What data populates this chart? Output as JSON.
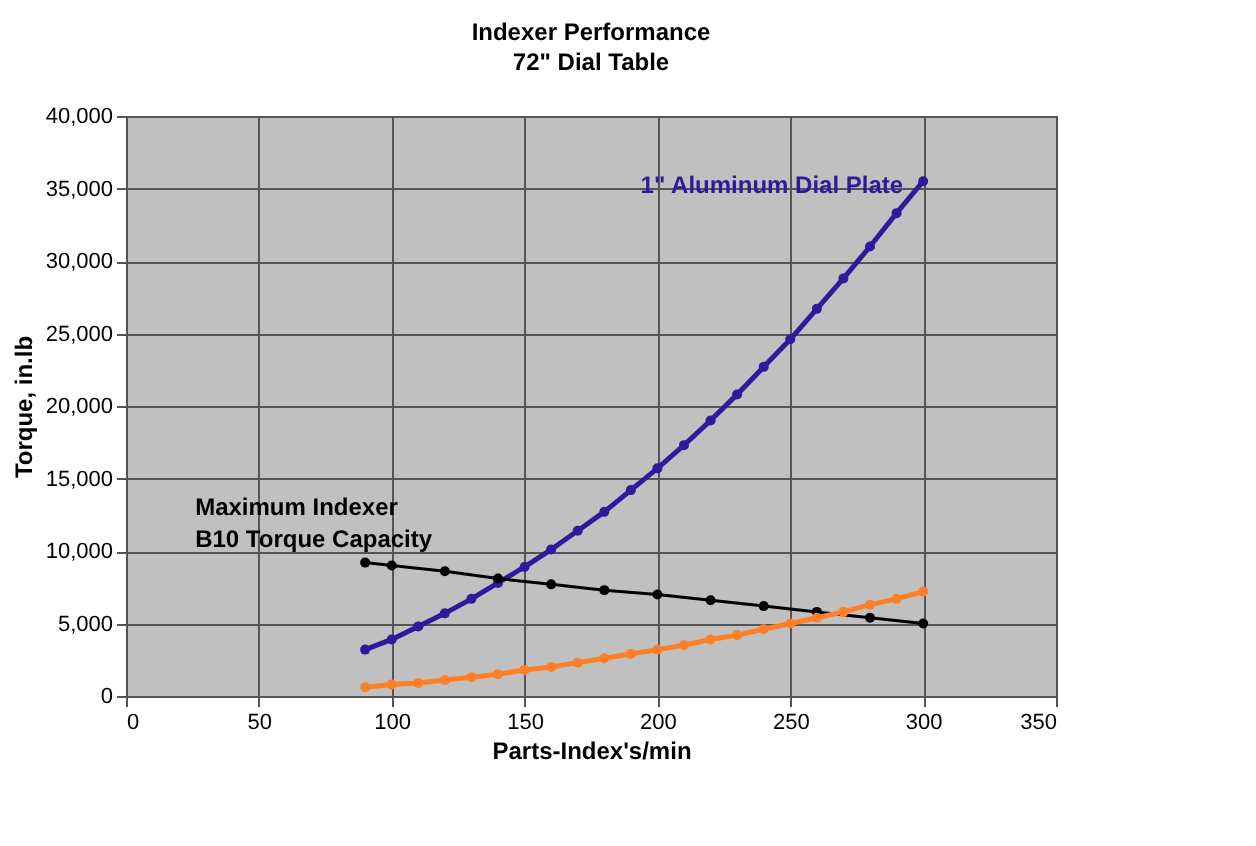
{
  "chart_data": {
    "type": "line",
    "title": "Indexer Performance",
    "subtitle": "72\" Dial Table",
    "xlabel": "Parts-Index's/min",
    "ylabel": "Torque, in.lb",
    "xlim": [
      0,
      350
    ],
    "xticks": [
      0,
      50,
      100,
      150,
      200,
      250,
      300,
      350
    ],
    "ylim": [
      0,
      40000
    ],
    "yticks": [
      {
        "value": 0,
        "label": "0"
      },
      {
        "value": 5000,
        "label": "5,000"
      },
      {
        "value": 10000,
        "label": "10,000"
      },
      {
        "value": 15000,
        "label": "15,000"
      },
      {
        "value": 20000,
        "label": "20,000"
      },
      {
        "value": 25000,
        "label": "25,000"
      },
      {
        "value": 30000,
        "label": "30,000"
      },
      {
        "value": 35000,
        "label": "35,000"
      },
      {
        "value": 40000,
        "label": "40,000"
      }
    ],
    "grid": true,
    "marker": "circle",
    "series": [
      {
        "name": "1\" Aluminum Dial Plate",
        "color": "#2e1a9c",
        "x": [
          90,
          100,
          110,
          120,
          130,
          140,
          150,
          160,
          170,
          180,
          190,
          200,
          210,
          220,
          230,
          240,
          250,
          260,
          270,
          280,
          290,
          300
        ],
        "values": [
          3200,
          3900,
          4800,
          5700,
          6700,
          7800,
          8900,
          10100,
          11400,
          12700,
          14200,
          15700,
          17300,
          19000,
          20800,
          22700,
          24600,
          26700,
          28800,
          31000,
          33300,
          35500
        ]
      },
      {
        "name": "Maximum Indexer B10 Torque Capacity",
        "color": "#000000",
        "x": [
          90,
          100,
          120,
          140,
          160,
          180,
          200,
          220,
          240,
          260,
          280,
          300
        ],
        "values": [
          9200,
          9000,
          8600,
          8100,
          7700,
          7300,
          7000,
          6600,
          6200,
          5800,
          5400,
          5000
        ]
      },
      {
        "color": "#ff7f27",
        "x": [
          90,
          100,
          110,
          120,
          130,
          140,
          150,
          160,
          170,
          180,
          190,
          200,
          210,
          220,
          230,
          240,
          250,
          260,
          270,
          280,
          290,
          300
        ],
        "values": [
          600,
          800,
          900,
          1100,
          1300,
          1500,
          1800,
          2000,
          2300,
          2600,
          2900,
          3200,
          3500,
          3900,
          4200,
          4600,
          5000,
          5400,
          5800,
          6300,
          6700,
          7200
        ]
      }
    ]
  }
}
